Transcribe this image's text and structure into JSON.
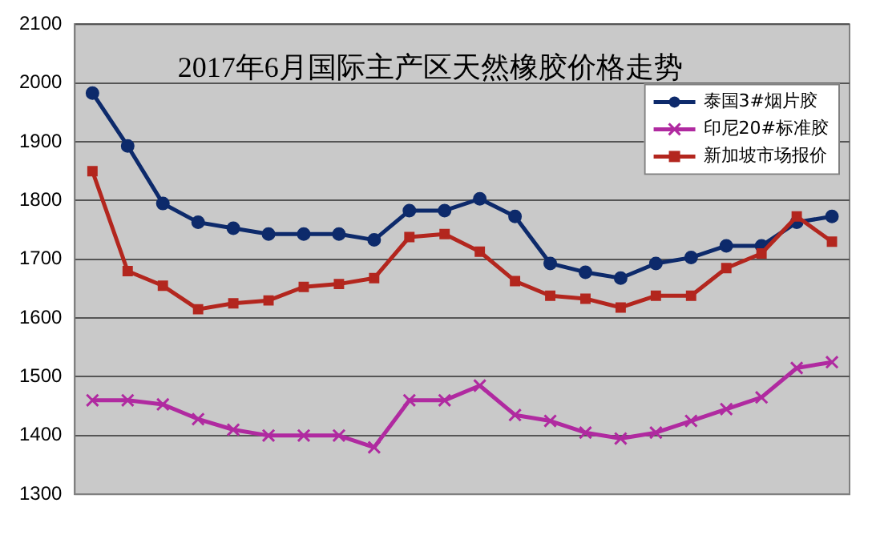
{
  "chart_data": {
    "type": "line",
    "title": "2017年6月国际主产区天然橡胶价格走势",
    "categories": [
      null,
      null,
      null,
      null,
      null,
      null,
      null,
      null,
      null,
      null,
      null,
      null,
      null,
      null,
      null,
      null,
      null,
      null,
      null,
      null,
      null,
      null
    ],
    "series": [
      {
        "name": "泰国3#烟片胶",
        "color": "#0d2a6b",
        "marker": "circle",
        "values": [
          1983,
          1893,
          1795,
          1763,
          1753,
          1743,
          1743,
          1743,
          1733,
          1783,
          1783,
          1803,
          1773,
          1693,
          1678,
          1668,
          1693,
          1703,
          1723,
          1723,
          1763,
          1773
        ]
      },
      {
        "name": "印尼20#标准胶",
        "color": "#b02aa0",
        "marker": "cross",
        "values": [
          1460,
          1460,
          1453,
          1428,
          1410,
          1400,
          1400,
          1400,
          1380,
          1460,
          1460,
          1485,
          1435,
          1425,
          1405,
          1395,
          1405,
          1425,
          1445,
          1465,
          1515,
          1525
        ]
      },
      {
        "name": "新加坡市场报价",
        "color": "#b3261e",
        "marker": "square",
        "values": [
          1850,
          1680,
          1655,
          1615,
          1625,
          1630,
          1653,
          1658,
          1668,
          1738,
          1743,
          1713,
          1663,
          1638,
          1633,
          1618,
          1638,
          1638,
          1685,
          1710,
          1773,
          1730
        ]
      }
    ],
    "ylim": [
      1300,
      2100
    ],
    "yticks": [
      1300,
      1400,
      1500,
      1600,
      1700,
      1800,
      1900,
      2000,
      2100
    ],
    "grid": "y",
    "legend": "top right",
    "line_style": "solid"
  }
}
